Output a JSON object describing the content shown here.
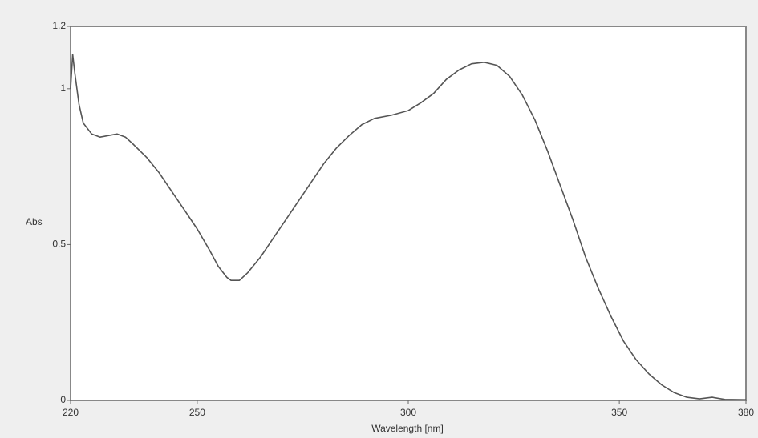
{
  "chart_data": {
    "type": "line",
    "xlabel": "Wavelength [nm]",
    "ylabel": "Abs",
    "x": [
      220,
      220.5,
      221,
      222,
      223,
      225,
      227,
      229,
      231,
      233,
      235,
      238,
      241,
      244,
      247,
      250,
      253,
      255,
      257,
      258,
      260,
      262,
      265,
      268,
      271,
      274,
      277,
      280,
      283,
      286,
      289,
      292,
      296,
      300,
      303,
      306,
      309,
      312,
      315,
      318,
      321,
      324,
      327,
      330,
      333,
      336,
      339,
      342,
      345,
      348,
      351,
      354,
      357,
      360,
      363,
      366,
      369,
      372,
      375,
      380
    ],
    "y": [
      1.0,
      1.11,
      1.05,
      0.95,
      0.89,
      0.855,
      0.845,
      0.85,
      0.855,
      0.845,
      0.82,
      0.78,
      0.73,
      0.67,
      0.61,
      0.55,
      0.48,
      0.43,
      0.395,
      0.385,
      0.385,
      0.41,
      0.46,
      0.52,
      0.58,
      0.64,
      0.7,
      0.76,
      0.81,
      0.85,
      0.885,
      0.905,
      0.915,
      0.93,
      0.955,
      0.985,
      1.03,
      1.06,
      1.08,
      1.085,
      1.075,
      1.04,
      0.98,
      0.9,
      0.8,
      0.69,
      0.58,
      0.46,
      0.36,
      0.27,
      0.19,
      0.13,
      0.085,
      0.05,
      0.025,
      0.01,
      0.005,
      0.01,
      0.003,
      0.002
    ],
    "color": "#555555",
    "xlim": [
      220,
      380
    ],
    "ylim": [
      0,
      1.2
    ],
    "xticks": [
      220,
      250,
      300,
      350,
      380
    ],
    "yticks": [
      0,
      0.5,
      1,
      1.2
    ]
  }
}
